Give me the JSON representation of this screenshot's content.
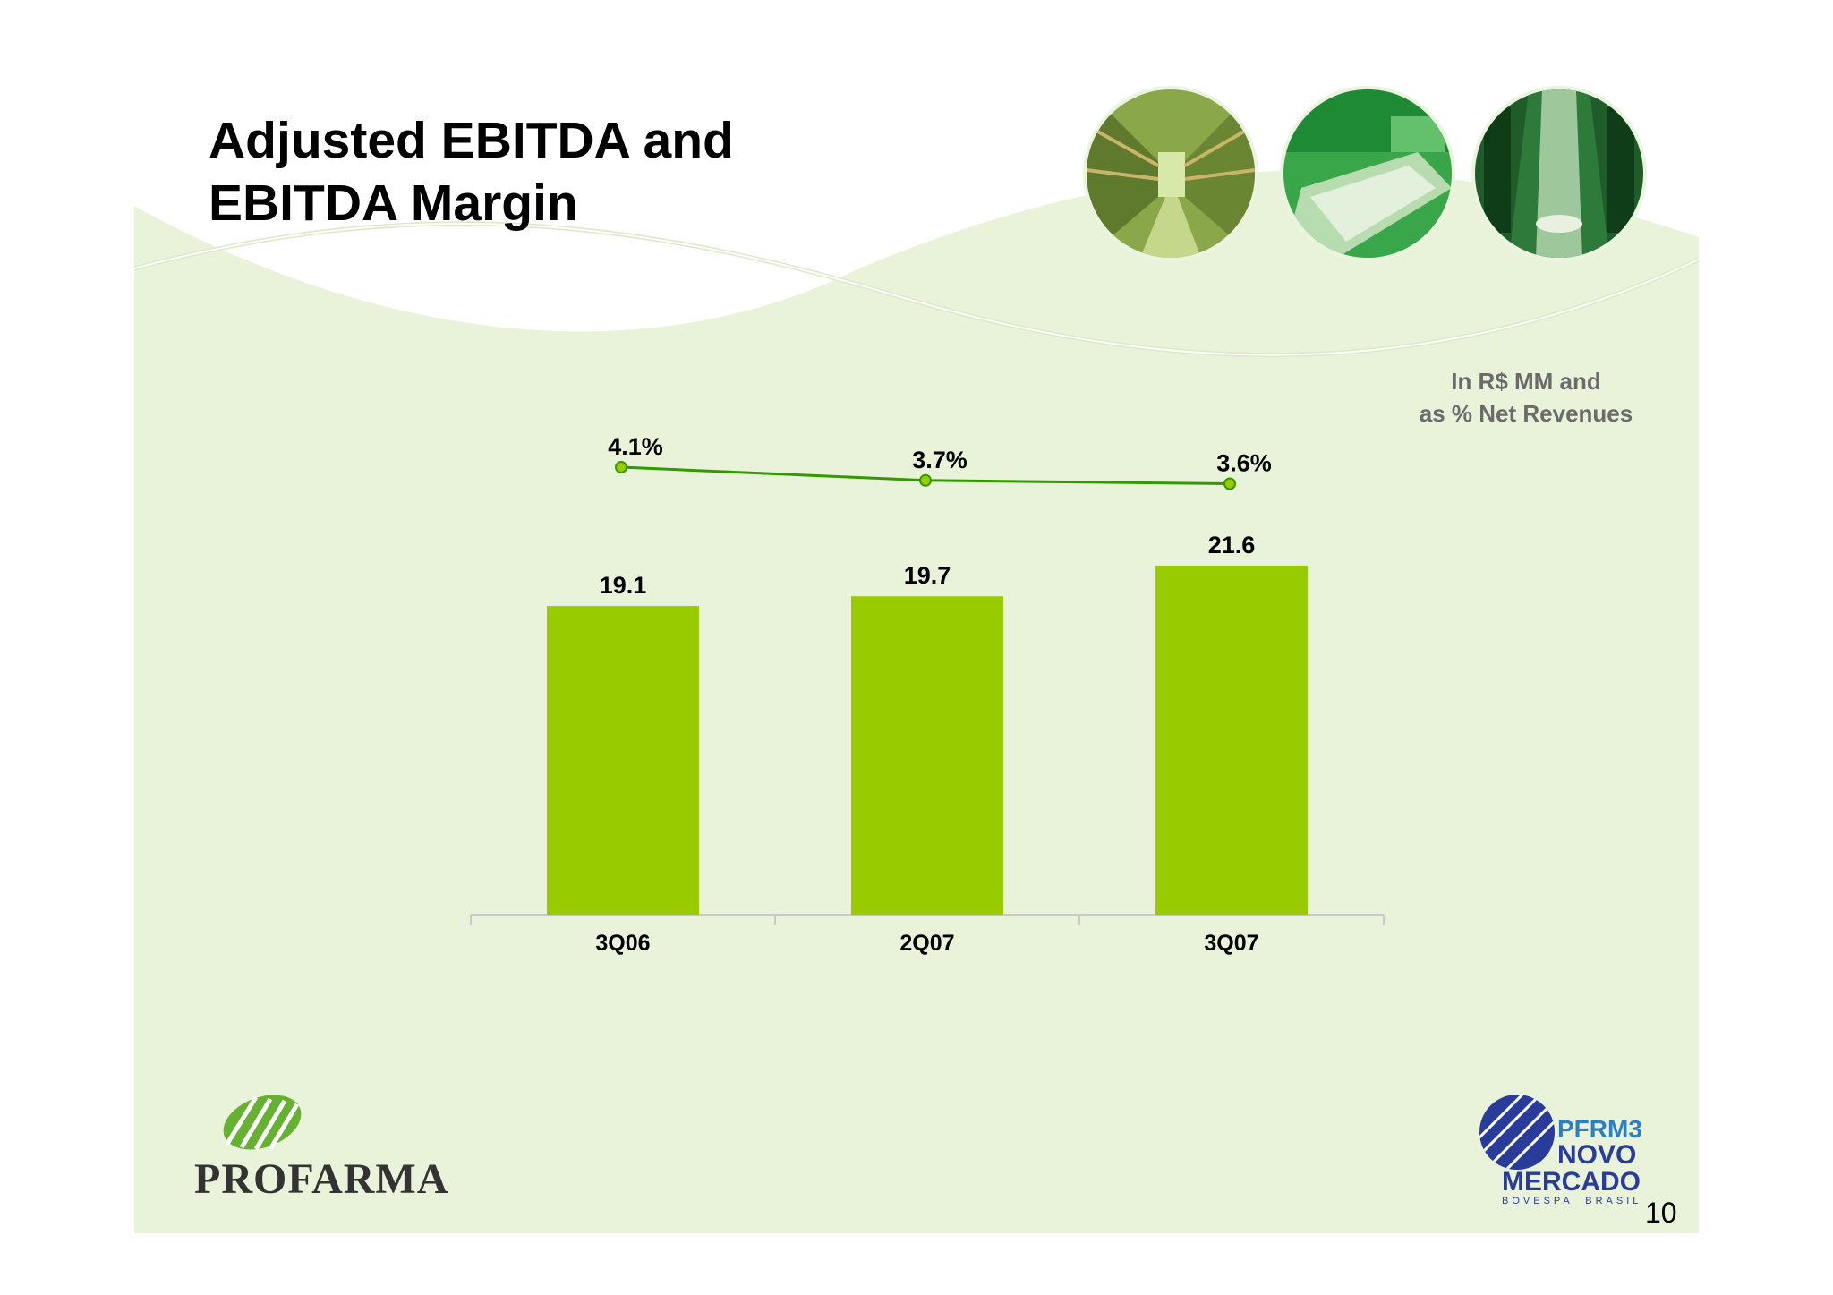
{
  "slide": {
    "title_line1": "Adjusted EBITDA and",
    "title_line2": "EBITDA Margin",
    "unit_line1": "In R$ MM and",
    "unit_line2": "as % Net Revenues",
    "page_number": "10"
  },
  "logos": {
    "company": "PROFARMA",
    "ticker": "PFRM3",
    "market_line1": "NOVO",
    "market_line2": "MERCADO",
    "exchange": "BOVESPA  BRASIL"
  },
  "icons": [
    "warehouse-photo",
    "conveyor-photo",
    "machine-photo",
    "profarma-leaf-icon",
    "novo-mercado-globe-icon"
  ],
  "colors": {
    "bar": "#99cc00",
    "line": "#339900",
    "marker": "#99cc00",
    "background": "#e9f3da"
  },
  "chart_data": {
    "type": "bar",
    "categories": [
      "3Q06",
      "2Q07",
      "3Q07"
    ],
    "series": [
      {
        "name": "",
        "type": "bar",
        "values": [
          19.1,
          19.7,
          21.6
        ],
        "labels": [
          "19.1",
          "19.7",
          "21.6"
        ]
      },
      {
        "name": "",
        "type": "line",
        "values": [
          4.1,
          3.7,
          3.6
        ],
        "labels": [
          "4.1%",
          "3.7%",
          "3.6%"
        ]
      }
    ],
    "title": "Adjusted EBITDA and EBITDA Margin",
    "xlabel": "",
    "ylabel": "",
    "grid": false,
    "legend": "none"
  }
}
